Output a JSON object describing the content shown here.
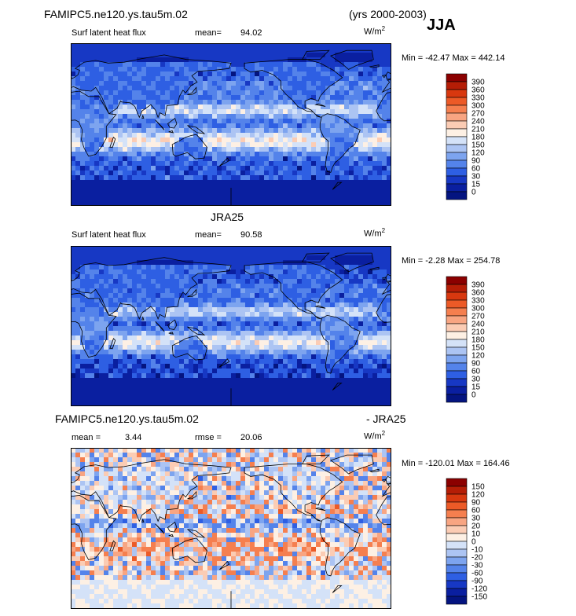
{
  "header": {
    "case_name": "FAMIPC5.ne120.ys.tau5m.02",
    "years": "(yrs 2000-2003)",
    "season": "JJA"
  },
  "panels": [
    {
      "title": "",
      "variable": "Surf latent heat flux",
      "mean_text": "mean=",
      "mean_value": "94.02",
      "units_base": "W/m",
      "units_exp": "2",
      "minmax": "Min = -42.47 Max = 442.14",
      "palette": "full",
      "colorbar_labels": [
        "390",
        "360",
        "330",
        "300",
        "270",
        "240",
        "210",
        "180",
        "150",
        "120",
        "90",
        "60",
        "30",
        "15",
        "0"
      ]
    },
    {
      "title": "JRA25",
      "variable": "Surf latent heat flux",
      "mean_text": "mean=",
      "mean_value": "90.58",
      "units_base": "W/m",
      "units_exp": "2",
      "minmax": "Min =  -2.28 Max = 254.78",
      "palette": "full",
      "colorbar_labels": [
        "390",
        "360",
        "330",
        "300",
        "270",
        "240",
        "210",
        "180",
        "150",
        "120",
        "90",
        "60",
        "30",
        "15",
        "0"
      ]
    },
    {
      "title_left": "FAMIPC5.ne120.ys.tau5m.02",
      "title_right": "- JRA25",
      "mean_text": "mean =",
      "mean_value": "3.44",
      "rmse_text": "rmse =",
      "rmse_value": "20.06",
      "units_base": "W/m",
      "units_exp": "2",
      "minmax": "Min = -120.01 Max = 164.46",
      "palette": "diff",
      "colorbar_labels": [
        "150",
        "120",
        "90",
        "60",
        "30",
        "20",
        "10",
        "0",
        "-10",
        "-20",
        "-30",
        "-60",
        "-90",
        "-120",
        "-150"
      ]
    }
  ],
  "palettes": {
    "full": [
      "#8b0000",
      "#b51d06",
      "#d8380f",
      "#ec5a27",
      "#f57f4f",
      "#f8a582",
      "#fbccb4",
      "#fdf0e4",
      "#d4e2f8",
      "#acc4f3",
      "#7da4ef",
      "#5483ea",
      "#2e5fe3",
      "#1738c4",
      "#0a1fa0",
      "#041480"
    ],
    "diff": [
      "#8b0000",
      "#b51d06",
      "#d8380f",
      "#ec5a27",
      "#f57f4f",
      "#f8a582",
      "#fbccb4",
      "#fdf0e4",
      "#d4e2f8",
      "#acc4f3",
      "#7da4ef",
      "#5483ea",
      "#2e5fe3",
      "#1738c4",
      "#0a1fa0",
      "#041480"
    ]
  }
}
